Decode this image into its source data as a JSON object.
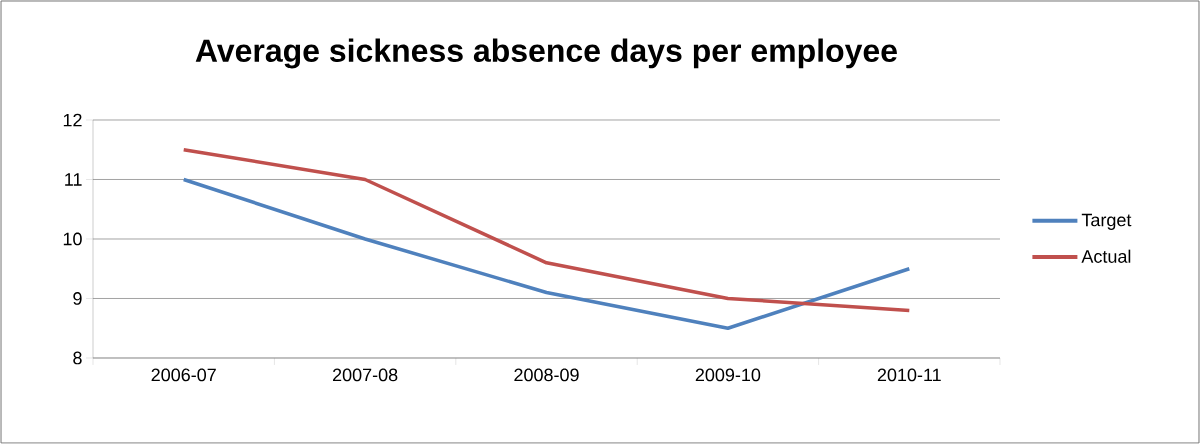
{
  "chart_data": {
    "type": "line",
    "title": "Average sickness absence days per employee",
    "categories": [
      "2006-07",
      "2007-08",
      "2008-09",
      "2009-10",
      "2010-11"
    ],
    "series": [
      {
        "name": "Target",
        "color": "#4f81bd",
        "values": [
          11,
          10,
          9.1,
          8.5,
          9.5
        ]
      },
      {
        "name": "Actual",
        "color": "#c0504d",
        "values": [
          11.5,
          11,
          9.6,
          9.0,
          8.8
        ]
      }
    ],
    "ylim": [
      8,
      12
    ],
    "yticks": [
      8,
      9,
      10,
      11,
      12
    ],
    "grid": "y",
    "legend": "right"
  }
}
